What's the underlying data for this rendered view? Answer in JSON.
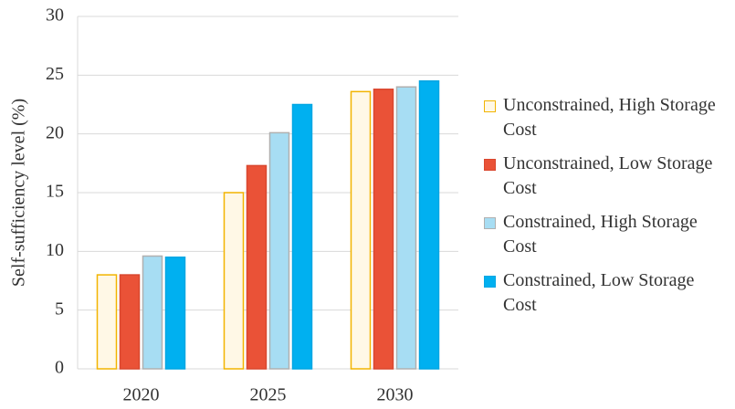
{
  "chart_data": {
    "type": "bar",
    "y_label": "Self-sufficiency level (%)",
    "categories": [
      "2020",
      "2025",
      "2030"
    ],
    "series": [
      {
        "name": "Unconstrained, High Storage Cost",
        "color": "#fff8e6",
        "edgecolor": "#f2b400",
        "values": [
          8.0,
          15.0,
          23.6
        ]
      },
      {
        "name": "Unconstrained, Low Storage Cost",
        "color": "#ea5237",
        "edgecolor": "#d9472f",
        "values": [
          8.0,
          17.3,
          23.8
        ]
      },
      {
        "name": "Constrained, High Storage Cost",
        "color": "#a7ddf3",
        "edgecolor": "#b0b0b0",
        "values": [
          9.6,
          20.1,
          24.0
        ]
      },
      {
        "name": "Constrained, Low Storage Cost",
        "color": "#00b0f0",
        "edgecolor": "#00a6e3",
        "values": [
          9.5,
          22.5,
          24.5
        ]
      }
    ],
    "ylim": [
      0,
      30
    ],
    "yticks": [
      0,
      5,
      10,
      15,
      20,
      25,
      30
    ],
    "grid": true,
    "legend": "right"
  }
}
